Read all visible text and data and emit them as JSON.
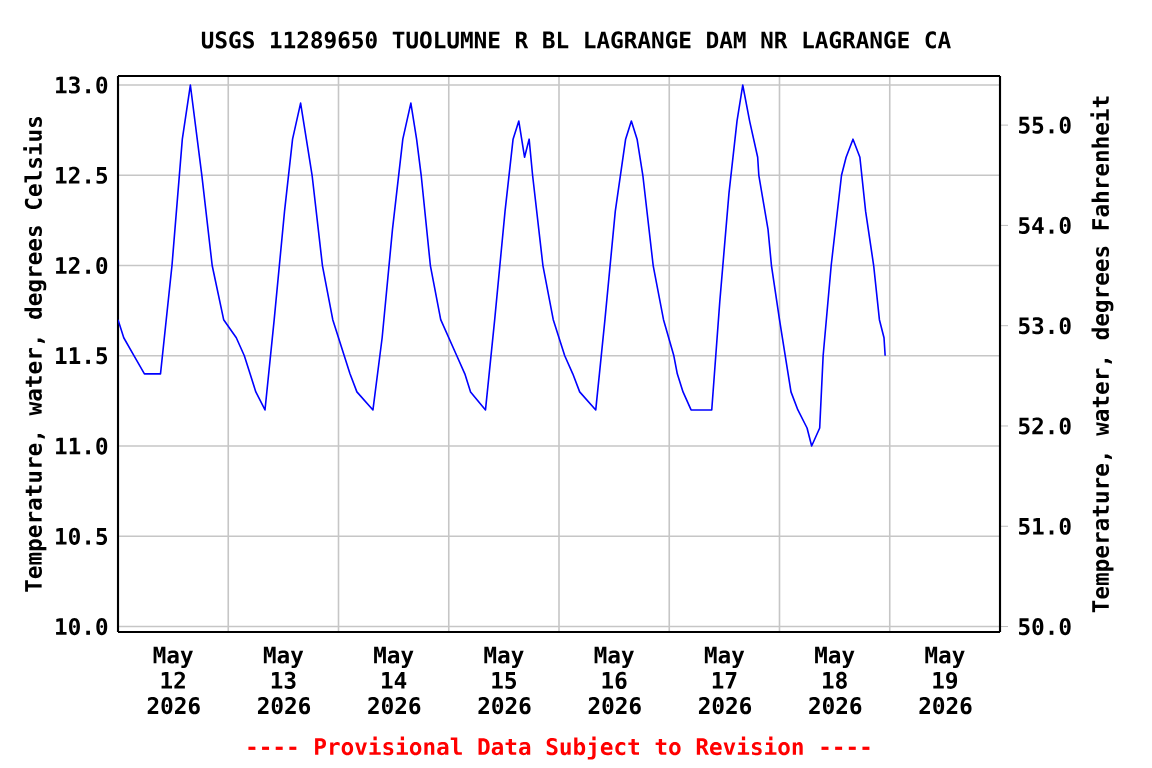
{
  "chart_data": {
    "type": "line",
    "title": "USGS 11289650 TUOLUMNE R BL LAGRANGE DAM NR LAGRANGE CA",
    "ylabel": "Temperature, water, degrees Celsius",
    "y2label": "Temperature, water, degrees Fahrenheit",
    "annotations": [
      "---- Provisional Data Subject to Revision ----"
    ],
    "xlim": [
      "2026-05-12T00:00",
      "2026-05-20T00:00"
    ],
    "xticks": [
      {
        "value": "2026-05-12T12:00",
        "label": "May 12 2026"
      },
      {
        "value": "2026-05-13T00:00",
        "label": null
      },
      {
        "value": "2026-05-13T12:00",
        "label": "May 13 2026"
      },
      {
        "value": "2026-05-14T00:00",
        "label": null
      },
      {
        "value": "2026-05-14T12:00",
        "label": "May 14 2026"
      },
      {
        "value": "2026-05-15T00:00",
        "label": null
      },
      {
        "value": "2026-05-15T12:00",
        "label": "May 15 2026"
      },
      {
        "value": "2026-05-16T00:00",
        "label": null
      },
      {
        "value": "2026-05-16T12:00",
        "label": "May 16 2026"
      },
      {
        "value": "2026-05-17T00:00",
        "label": null
      },
      {
        "value": "2026-05-17T12:00",
        "label": "May 17 2026"
      },
      {
        "value": "2026-05-18T00:00",
        "label": null
      },
      {
        "value": "2026-05-18T12:00",
        "label": "May 18 2026"
      },
      {
        "value": "2026-05-19T00:00",
        "label": null
      },
      {
        "value": "2026-05-19T12:00",
        "label": "May 19 2026"
      }
    ],
    "ylim": [
      9.97,
      13.05
    ],
    "yticks": [
      {
        "value": 10,
        "label": "10.0"
      },
      {
        "value": 10.5,
        "label": "10.5"
      },
      {
        "value": 11,
        "label": "11.0"
      },
      {
        "value": 11.5,
        "label": "11.5"
      },
      {
        "value": 12,
        "label": "12.0"
      },
      {
        "value": 12.5,
        "label": "12.5"
      },
      {
        "value": 13,
        "label": "13.0"
      }
    ],
    "y2lim": [
      49.946,
      55.49
    ],
    "y2ticks": [
      {
        "value": 50,
        "label": "50.0"
      },
      {
        "value": 51,
        "label": "51.0"
      },
      {
        "value": 52,
        "label": "52.0"
      },
      {
        "value": 53,
        "label": "53.0"
      },
      {
        "value": 54,
        "label": "54.0"
      },
      {
        "value": 55,
        "label": "55.0"
      }
    ],
    "grid": true,
    "marker": "none",
    "line_style": "solid",
    "series": [
      {
        "color": "#0000ff",
        "x": [
          "2026-05-12T00:00",
          "2026-05-12T01:15",
          "2026-05-12T03:30",
          "2026-05-12T05:45",
          "2026-05-12T09:15",
          "2026-05-12T11:45",
          "2026-05-12T14:00",
          "2026-05-12T15:45",
          "2026-05-12T18:15",
          "2026-05-12T20:30",
          "2026-05-12T23:00",
          "2026-05-13T01:45",
          "2026-05-13T03:30",
          "2026-05-13T04:45",
          "2026-05-13T06:00",
          "2026-05-13T08:00",
          "2026-05-13T10:00",
          "2026-05-13T12:15",
          "2026-05-13T14:00",
          "2026-05-13T15:45",
          "2026-05-13T17:00",
          "2026-05-13T18:15",
          "2026-05-13T20:30",
          "2026-05-13T22:45",
          "2026-05-14T01:15",
          "2026-05-14T02:30",
          "2026-05-14T04:00",
          "2026-05-14T07:30",
          "2026-05-14T09:30",
          "2026-05-14T11:45",
          "2026-05-14T14:00",
          "2026-05-14T15:45",
          "2026-05-14T17:00",
          "2026-05-14T18:00",
          "2026-05-14T20:00",
          "2026-05-14T22:15",
          "2026-05-15T01:45",
          "2026-05-15T03:30",
          "2026-05-15T04:45",
          "2026-05-15T08:00",
          "2026-05-15T10:00",
          "2026-05-15T12:15",
          "2026-05-15T14:00",
          "2026-05-15T15:15",
          "2026-05-15T16:30",
          "2026-05-15T17:30",
          "2026-05-15T18:15",
          "2026-05-15T20:30",
          "2026-05-15T22:45",
          "2026-05-16T01:15",
          "2026-05-16T03:00",
          "2026-05-16T04:30",
          "2026-05-16T08:00",
          "2026-05-16T10:00",
          "2026-05-16T12:15",
          "2026-05-16T14:30",
          "2026-05-16T15:45",
          "2026-05-16T17:00",
          "2026-05-16T18:15",
          "2026-05-16T20:30",
          "2026-05-16T22:45",
          "2026-05-17T01:00",
          "2026-05-17T01:45",
          "2026-05-17T03:00",
          "2026-05-17T04:45",
          "2026-05-17T09:15",
          "2026-05-17T11:00",
          "2026-05-17T13:00",
          "2026-05-17T14:45",
          "2026-05-17T16:00",
          "2026-05-17T17:30",
          "2026-05-17T19:15",
          "2026-05-17T19:30",
          "2026-05-17T21:30",
          "2026-05-17T22:15",
          "2026-05-18T00:00",
          "2026-05-18T01:15",
          "2026-05-18T02:30",
          "2026-05-18T04:00",
          "2026-05-18T06:00",
          "2026-05-18T07:00",
          "2026-05-18T08:45",
          "2026-05-18T09:30",
          "2026-05-18T11:15",
          "2026-05-18T13:30",
          "2026-05-18T14:30",
          "2026-05-18T16:00",
          "2026-05-18T17:30",
          "2026-05-18T18:45",
          "2026-05-18T20:30",
          "2026-05-18T21:45",
          "2026-05-18T22:45",
          "2026-05-18T23:00"
        ],
        "values": [
          11.7,
          11.6,
          11.5,
          11.4,
          11.4,
          12.0,
          12.7,
          13.0,
          12.5,
          12.0,
          11.7,
          11.6,
          11.5,
          11.4,
          11.3,
          11.2,
          11.7,
          12.3,
          12.7,
          12.9,
          12.7,
          12.5,
          12.0,
          11.7,
          11.5,
          11.4,
          11.3,
          11.2,
          11.6,
          12.2,
          12.7,
          12.9,
          12.7,
          12.5,
          12.0,
          11.7,
          11.5,
          11.4,
          11.3,
          11.2,
          11.7,
          12.3,
          12.7,
          12.8,
          12.6,
          12.7,
          12.5,
          12.0,
          11.7,
          11.5,
          11.4,
          11.3,
          11.2,
          11.7,
          12.3,
          12.7,
          12.8,
          12.7,
          12.5,
          12.0,
          11.7,
          11.5,
          11.4,
          11.3,
          11.2,
          11.2,
          11.8,
          12.4,
          12.8,
          13.0,
          12.8,
          12.6,
          12.5,
          12.2,
          12.0,
          11.7,
          11.5,
          11.3,
          11.2,
          11.1,
          11.0,
          11.1,
          11.5,
          12.0,
          12.5,
          12.6,
          12.7,
          12.6,
          12.3,
          12.0,
          11.7,
          11.6,
          11.5
        ]
      }
    ]
  }
}
